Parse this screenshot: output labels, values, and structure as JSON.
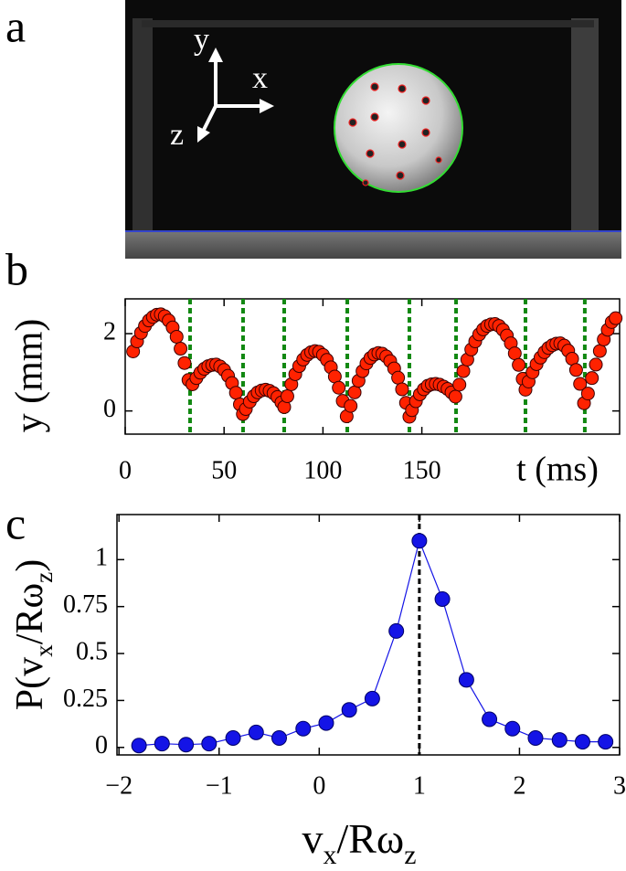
{
  "panel_labels": [
    "a",
    "b",
    "c"
  ],
  "photo": {
    "axis_labels": [
      "y",
      "x",
      "z"
    ]
  },
  "chart_data": [
    {
      "type": "scatter",
      "xlabel": "t (ms)",
      "ylabel": "y (mm)",
      "color": "#ff2200",
      "vline_color": "#118811",
      "vlines": [
        32.8,
        59.6,
        80.4,
        112.3,
        143.7,
        167.3,
        202.4,
        232.4
      ],
      "xlim": [
        0,
        250
      ],
      "ylim": [
        -0.6,
        2.9
      ],
      "xticks": [
        0,
        50,
        100,
        150
      ],
      "yticks": [
        0,
        2
      ],
      "x": [
        4,
        6,
        8,
        10,
        12,
        14,
        16,
        18,
        20,
        22,
        24,
        26,
        28,
        30,
        32,
        34,
        36,
        38,
        40,
        42,
        44,
        46,
        48,
        50,
        52,
        54,
        56,
        58,
        59.5,
        61,
        63,
        65,
        67,
        69,
        71,
        73,
        75,
        77,
        79,
        80.4,
        82,
        84,
        86,
        88,
        90,
        92,
        94,
        96,
        98,
        100,
        102,
        104,
        106,
        108,
        110,
        112,
        114,
        116,
        118,
        120,
        122,
        124,
        126,
        128,
        130,
        132,
        134,
        136,
        138,
        140,
        142,
        143.7,
        145,
        147,
        149,
        151,
        153,
        155,
        157,
        159,
        161,
        163,
        165,
        167,
        169,
        171,
        173,
        175,
        177,
        179,
        181,
        183,
        185,
        187,
        189,
        191,
        193,
        195,
        197,
        199,
        201,
        202.4,
        204,
        206,
        208,
        210,
        212,
        214,
        216,
        218,
        220,
        222,
        224,
        226,
        228,
        230,
        232,
        234,
        236,
        238,
        240,
        242,
        244,
        246,
        248
      ],
      "values": [
        1.54,
        1.8,
        2.02,
        2.2,
        2.34,
        2.43,
        2.49,
        2.5,
        2.45,
        2.34,
        2.16,
        1.92,
        1.61,
        1.24,
        0.8,
        0.69,
        0.85,
        0.99,
        1.09,
        1.16,
        1.19,
        1.2,
        1.15,
        1.06,
        0.91,
        0.72,
        0.47,
        0.17,
        -0.08,
        0.05,
        0.24,
        0.38,
        0.48,
        0.53,
        0.55,
        0.52,
        0.46,
        0.36,
        0.22,
        0.1,
        0.38,
        0.69,
        0.95,
        1.16,
        1.33,
        1.45,
        1.52,
        1.55,
        1.53,
        1.45,
        1.32,
        1.13,
        0.89,
        0.6,
        0.26,
        -0.14,
        0.13,
        0.48,
        0.78,
        1.03,
        1.23,
        1.37,
        1.46,
        1.5,
        1.48,
        1.41,
        1.29,
        1.1,
        0.86,
        0.56,
        0.21,
        -0.15,
        0.02,
        0.25,
        0.43,
        0.56,
        0.65,
        0.69,
        0.7,
        0.68,
        0.63,
        0.57,
        0.48,
        0.37,
        0.68,
        1.03,
        1.33,
        1.59,
        1.8,
        1.98,
        2.11,
        2.2,
        2.24,
        2.25,
        2.2,
        2.1,
        1.95,
        1.75,
        1.49,
        1.19,
        0.83,
        0.55,
        0.76,
        1.0,
        1.21,
        1.38,
        1.52,
        1.63,
        1.7,
        1.74,
        1.75,
        1.69,
        1.56,
        1.35,
        1.06,
        0.7,
        0.2,
        0.45,
        0.85,
        1.2,
        1.55,
        1.85,
        2.1,
        2.3,
        2.4
      ]
    },
    {
      "type": "line",
      "xlabel_parts": [
        "v",
        "x",
        "/Rω",
        "z"
      ],
      "ylabel_parts": [
        "P(v",
        "x",
        "/Rω",
        "z",
        ")"
      ],
      "color": "#1414e6",
      "vline": 1,
      "vline_color": "#000000",
      "xlim": [
        -2.02,
        3.0
      ],
      "ylim": [
        -0.04,
        1.24
      ],
      "xticks": [
        {
          "value": -2,
          "label": "−2"
        },
        {
          "value": -1,
          "label": "−1"
        },
        0,
        1,
        2,
        3
      ],
      "yticks": [
        0,
        0.25,
        0.5,
        0.75,
        1
      ],
      "x": [
        -1.8,
        -1.57,
        -1.33,
        -1.1,
        -0.86,
        -0.63,
        -0.4,
        -0.16,
        0.07,
        0.3,
        0.53,
        0.77,
        1.0,
        1.23,
        1.47,
        1.7,
        1.93,
        2.16,
        2.4,
        2.63,
        2.86
      ],
      "values": [
        0.01,
        0.02,
        0.015,
        0.02,
        0.05,
        0.08,
        0.05,
        0.1,
        0.13,
        0.2,
        0.26,
        0.62,
        1.1,
        0.79,
        0.36,
        0.15,
        0.1,
        0.05,
        0.04,
        0.03,
        0.03
      ]
    }
  ]
}
